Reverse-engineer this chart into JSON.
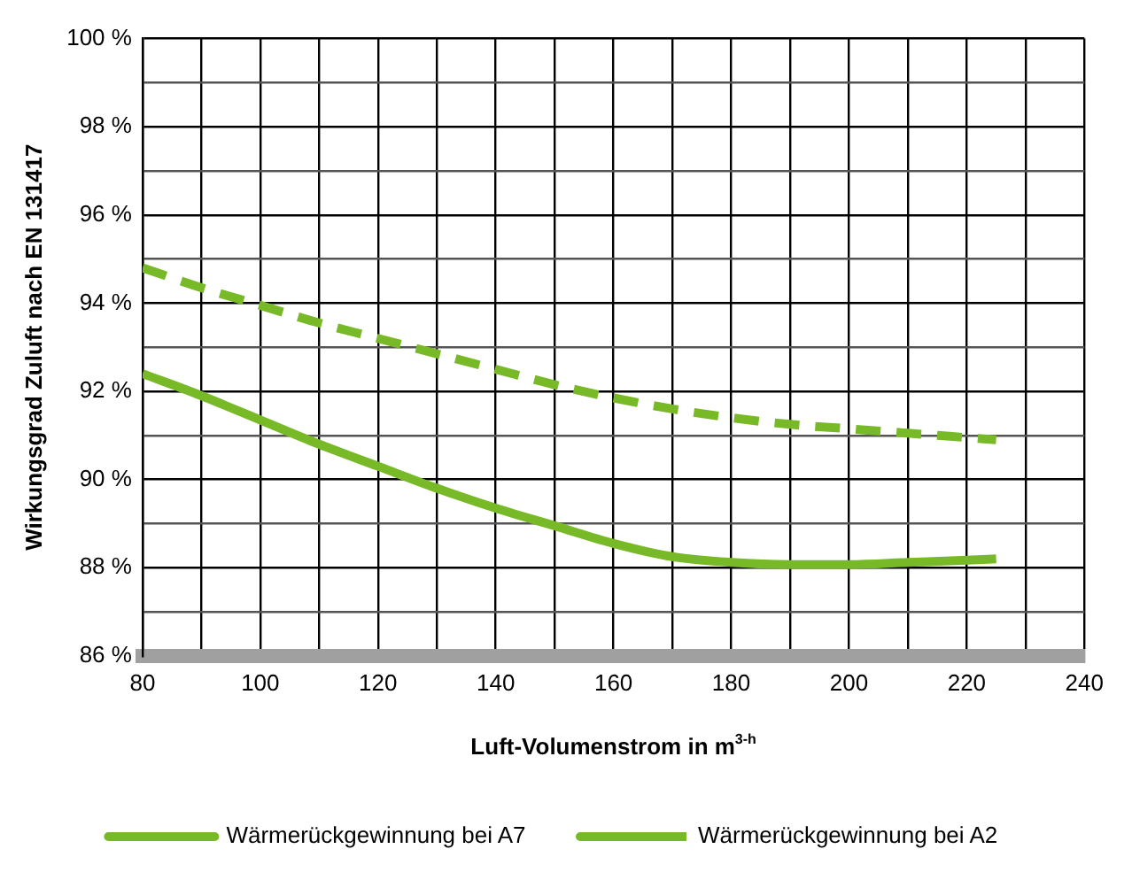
{
  "chart_data": {
    "type": "line",
    "xlabel": "Luft-Volumenstrom in m$^{3-h}$",
    "ylabel": "Wirkungsgrad Zuluft nach EN 131417",
    "x": [
      80,
      90,
      100,
      110,
      120,
      130,
      140,
      150,
      160,
      170,
      180,
      190,
      200,
      210,
      220,
      225
    ],
    "series": [
      {
        "name": "Wärmerückgewinnung bei A7",
        "color": "#78b928",
        "line_style": "solid",
        "values": [
          92.4,
          91.9,
          91.35,
          90.8,
          90.3,
          89.8,
          89.35,
          88.95,
          88.55,
          88.25,
          88.12,
          88.07,
          88.07,
          88.12,
          88.17,
          88.2
        ]
      },
      {
        "name": "Wärmerückgewinnung bei A2",
        "color": "#78b928",
        "line_style": "dashed",
        "values": [
          94.8,
          94.35,
          93.95,
          93.55,
          93.2,
          92.85,
          92.5,
          92.15,
          91.85,
          91.6,
          91.4,
          91.25,
          91.15,
          91.05,
          90.95,
          90.9
        ]
      }
    ],
    "xlim": [
      80,
      240
    ],
    "xticks": [
      80,
      {
        "value": 90,
        "label": null
      },
      100,
      {
        "value": 110,
        "label": null
      },
      120,
      {
        "value": 130,
        "label": null
      },
      140,
      {
        "value": 150,
        "label": null
      },
      160,
      {
        "value": 170,
        "label": null
      },
      180,
      {
        "value": 190,
        "label": null
      },
      200,
      {
        "value": 210,
        "label": null
      },
      220,
      {
        "value": 230,
        "label": null
      },
      240
    ],
    "ylim": [
      86,
      100
    ],
    "yticks": [
      {
        "value": 86,
        "label": "86 %"
      },
      {
        "value": 87,
        "label": null
      },
      {
        "value": 88,
        "label": "88 %"
      },
      {
        "value": 89,
        "label": null
      },
      {
        "value": 90,
        "label": "90 %"
      },
      {
        "value": 91,
        "label": null
      },
      {
        "value": 92,
        "label": "92 %"
      },
      {
        "value": 93,
        "label": null
      },
      {
        "value": 94,
        "label": "94 %"
      },
      {
        "value": 95,
        "label": null
      },
      {
        "value": 96,
        "label": "96 %"
      },
      {
        "value": 97,
        "label": null
      },
      {
        "value": 98,
        "label": "98 %"
      },
      {
        "value": 99,
        "label": null
      },
      {
        "value": 100,
        "label": "100 %"
      }
    ],
    "grid": true,
    "legend": "bottom",
    "marker": "none"
  }
}
